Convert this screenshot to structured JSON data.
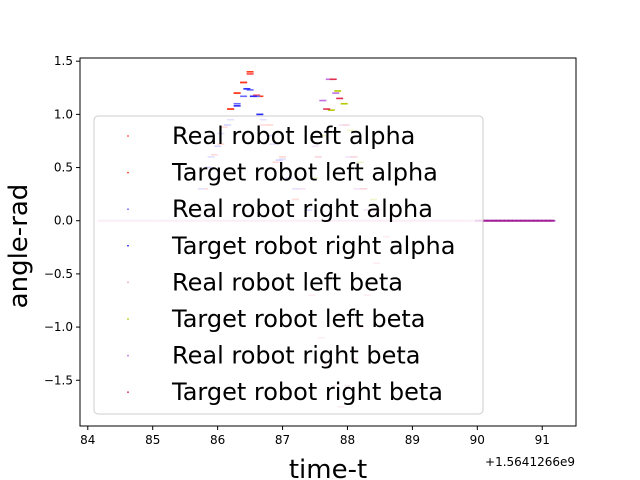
{
  "chart_data": {
    "type": "scatter",
    "xlabel": "time-t",
    "ylabel": "angle-rad",
    "x_offset_label": "+1.5641266e9",
    "xlim": [
      83.88,
      91.52
    ],
    "ylim": [
      -1.93,
      1.53
    ],
    "x_ticks": [
      84,
      85,
      86,
      87,
      88,
      89,
      90,
      91
    ],
    "x_tick_labels": [
      "84",
      "85",
      "86",
      "87",
      "88",
      "89",
      "90",
      "91"
    ],
    "y_ticks": [
      -1.5,
      -1.0,
      -0.5,
      0.0,
      0.5,
      1.0,
      1.5
    ],
    "y_tick_labels": [
      "−1.5",
      "−1.0",
      "−0.5",
      "0.0",
      "0.5",
      "1.0",
      "1.5"
    ],
    "grid": false,
    "legend_position": "center",
    "series": [
      {
        "name": "Real robot left alpha",
        "color": "#ff4a4a",
        "x": [
          84.25,
          84.6,
          84.95,
          85.3,
          85.65,
          85.8,
          85.95,
          86.1,
          86.2,
          86.3,
          86.4,
          86.5,
          86.6,
          86.7,
          86.9,
          87.2,
          87.5,
          87.8,
          88.2,
          88.6,
          89.0,
          89.4,
          89.8
        ],
        "y": [
          0.0,
          0.0,
          0.0,
          0.0,
          0.0,
          0.3,
          0.62,
          0.88,
          1.05,
          1.2,
          1.3,
          1.38,
          1.18,
          0.9,
          0.55,
          0.2,
          0.0,
          0.0,
          0.0,
          0.0,
          0.0,
          0.0,
          0.0
        ]
      },
      {
        "name": "Target robot left alpha",
        "color": "#ff3a1a",
        "x": [
          84.3,
          84.7,
          85.1,
          85.5,
          85.9,
          86.05,
          86.2,
          86.3,
          86.4,
          86.5,
          86.65,
          86.8,
          87.0,
          87.3,
          87.7,
          88.1,
          88.5,
          88.9,
          89.3,
          89.7
        ],
        "y": [
          0.0,
          0.0,
          0.0,
          0.0,
          0.0,
          0.72,
          1.05,
          1.2,
          1.3,
          1.4,
          1.17,
          0.9,
          0.6,
          0.3,
          0.0,
          0.0,
          0.0,
          0.0,
          0.0,
          0.0
        ]
      },
      {
        "name": "Real robot right alpha",
        "color": "#6a6aff",
        "x": [
          84.35,
          84.75,
          85.15,
          85.55,
          85.75,
          85.9,
          86.05,
          86.2,
          86.3,
          86.4,
          86.5,
          86.6,
          86.7,
          86.85,
          87.0,
          87.2,
          87.5,
          87.9,
          88.3,
          88.7,
          89.1,
          89.5
        ],
        "y": [
          0.0,
          0.0,
          0.0,
          0.0,
          0.3,
          0.6,
          0.82,
          0.95,
          1.1,
          1.17,
          1.23,
          1.17,
          0.95,
          0.72,
          0.58,
          0.3,
          0.0,
          0.0,
          0.0,
          0.0,
          0.0,
          0.0
        ]
      },
      {
        "name": "Target robot right alpha",
        "color": "#2a2aff",
        "x": [
          84.4,
          84.8,
          85.2,
          85.6,
          85.85,
          86.0,
          86.15,
          86.3,
          86.45,
          86.55,
          86.65,
          86.8,
          86.95,
          87.1,
          87.4,
          87.8,
          88.2,
          88.6,
          89.0,
          89.4
        ],
        "y": [
          0.0,
          0.0,
          0.0,
          0.0,
          0.5,
          0.7,
          0.9,
          1.08,
          1.24,
          1.17,
          1.0,
          0.8,
          0.57,
          0.4,
          0.1,
          0.0,
          0.0,
          0.0,
          0.0,
          0.0
        ]
      },
      {
        "name": "Real robot left beta",
        "color": "#f0a0c8",
        "x": [
          84.2,
          84.55,
          84.9,
          85.25,
          85.6,
          86.0,
          86.4,
          86.8,
          87.1,
          87.3,
          87.45,
          87.6,
          87.7,
          87.8,
          87.9,
          88.0,
          88.1,
          88.2,
          88.3,
          88.45,
          88.6,
          88.8,
          89.0,
          89.3,
          89.6,
          89.9
        ],
        "y": [
          0.0,
          0.0,
          0.0,
          0.0,
          0.0,
          0.0,
          0.0,
          0.0,
          0.0,
          -0.3,
          -0.7,
          -1.1,
          -1.35,
          -1.55,
          -1.75,
          -1.55,
          -1.3,
          -1.0,
          -0.7,
          -0.4,
          -0.15,
          0.0,
          0.0,
          0.0,
          0.0,
          0.0
        ]
      },
      {
        "name": "Target robot left beta",
        "color": "#b8c800",
        "x": [
          84.3,
          84.8,
          85.3,
          85.8,
          86.3,
          86.8,
          87.2,
          87.5,
          87.65,
          87.75,
          87.85,
          87.95,
          88.05,
          88.2,
          88.4,
          88.7,
          89.0,
          89.4
        ],
        "y": [
          0.0,
          0.0,
          0.0,
          0.0,
          0.0,
          0.0,
          0.0,
          0.4,
          0.8,
          1.04,
          1.22,
          1.1,
          0.85,
          0.55,
          0.2,
          0.0,
          0.0,
          0.0
        ]
      },
      {
        "name": "Real robot right beta",
        "color": "#c070e0",
        "x": [
          84.25,
          84.7,
          85.15,
          85.6,
          86.05,
          86.5,
          86.95,
          87.3,
          87.5,
          87.62,
          87.72,
          87.82,
          87.92,
          88.02,
          88.15,
          88.3,
          88.5,
          88.75,
          89.05,
          89.4,
          89.75,
          90.05,
          90.15,
          90.25,
          90.35,
          90.45,
          90.55,
          90.65,
          90.75,
          90.85,
          90.95,
          91.05,
          91.15
        ],
        "y": [
          0.0,
          0.0,
          0.0,
          0.0,
          0.0,
          0.0,
          0.0,
          0.3,
          0.7,
          1.13,
          1.33,
          1.2,
          0.9,
          0.6,
          0.3,
          0.1,
          0.0,
          0.0,
          0.0,
          0.0,
          0.0,
          0.0,
          0.0,
          0.0,
          0.0,
          0.0,
          0.0,
          0.0,
          0.0,
          0.0,
          0.0,
          0.0,
          0.0
        ]
      },
      {
        "name": "Target robot right beta",
        "color": "#e03050",
        "x": [
          84.35,
          84.85,
          85.35,
          85.85,
          86.35,
          86.85,
          87.25,
          87.55,
          87.68,
          87.78,
          87.88,
          87.98,
          88.1,
          88.25,
          88.45,
          88.7,
          89.0,
          89.35,
          89.7,
          90.1,
          90.3,
          90.5,
          90.7,
          90.9,
          91.1
        ],
        "y": [
          0.0,
          0.0,
          0.0,
          0.0,
          0.0,
          0.0,
          0.0,
          0.6,
          1.05,
          1.33,
          1.15,
          0.9,
          0.6,
          0.3,
          0.1,
          0.0,
          0.0,
          0.0,
          0.0,
          0.0,
          0.0,
          0.0,
          0.0,
          0.0,
          0.0
        ]
      }
    ]
  }
}
